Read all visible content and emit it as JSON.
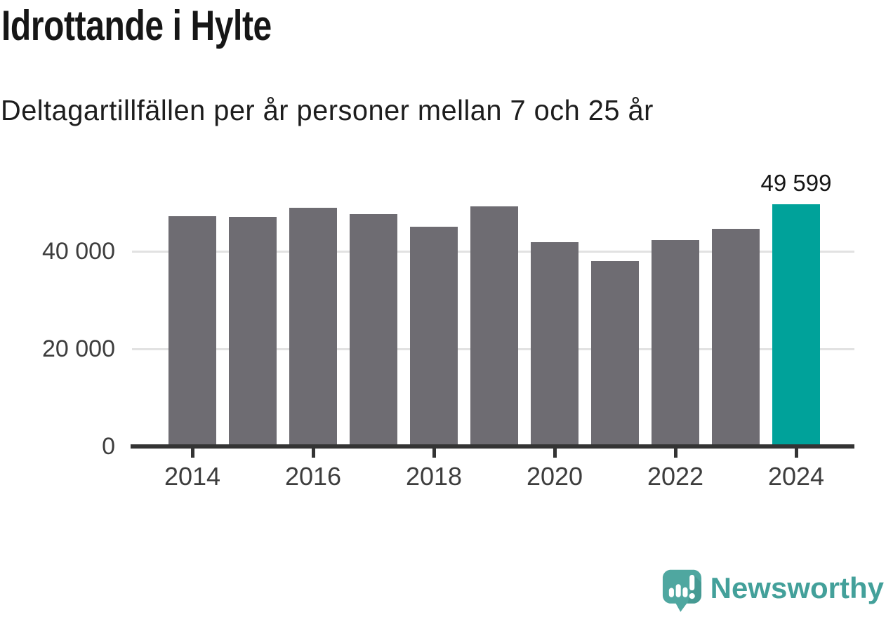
{
  "chart_data": {
    "type": "bar",
    "title": "Idrottande i Hylte",
    "subtitle": "Deltagartillfällen per år personer mellan 7 och 25 år",
    "categories": [
      "2014",
      "2015",
      "2016",
      "2017",
      "2018",
      "2019",
      "2020",
      "2021",
      "2022",
      "2023",
      "2024"
    ],
    "values": [
      47200,
      47050,
      48900,
      47600,
      45000,
      49200,
      41900,
      38000,
      42300,
      44600,
      49599
    ],
    "highlighted_category": "2024",
    "annotations": [
      {
        "category": "2024",
        "text": "49 599"
      }
    ],
    "y_axis": {
      "ticks": [
        {
          "value": 0,
          "label": "0"
        },
        {
          "value": 20000,
          "label": "20 000"
        },
        {
          "value": 40000,
          "label": "40 000"
        }
      ],
      "range": [
        0,
        51600
      ],
      "gridlines": true
    },
    "x_axis": {
      "tick_labels": [
        "2014",
        "2016",
        "2018",
        "2020",
        "2022",
        "2024"
      ]
    },
    "legend": null,
    "colors": {
      "bar": "#6E6C72",
      "highlighted_bar": "#00A29A",
      "gridline": "#E2E2E2",
      "axis_line": "#343434",
      "axis_text": "#3D3D3D",
      "annotation_text": "#161616"
    }
  },
  "footer": {
    "brand_name": "Newsworthy",
    "brand_color": "#43A09A",
    "logo_icon": "newsworthy-speech-bubble-bar-chart-icon",
    "logo_icon_color": "#4FA7A0"
  }
}
